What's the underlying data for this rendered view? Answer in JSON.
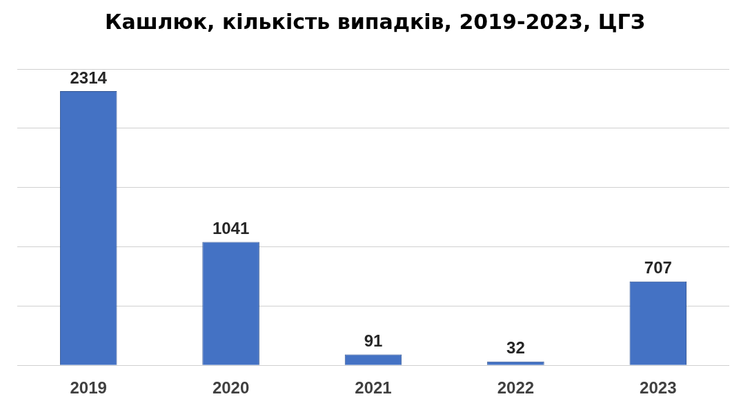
{
  "chart_data": {
    "type": "bar",
    "title": "Кашлюк, кількість випадків, 2019-2023, ЦГЗ",
    "categories": [
      "2019",
      "2020",
      "2021",
      "2022",
      "2023"
    ],
    "values": [
      2314,
      1041,
      91,
      32,
      707
    ],
    "color": "#4472c4",
    "ylim": [
      0,
      2500
    ],
    "yticks": [
      {
        "value": 0,
        "label": null
      },
      {
        "value": 500,
        "label": null
      },
      {
        "value": 1000,
        "label": null
      },
      {
        "value": 1500,
        "label": null
      },
      {
        "value": 2000,
        "label": null
      },
      {
        "value": 2500,
        "label": null
      }
    ],
    "tick_labels": "x",
    "grid": "y",
    "data_labels": true,
    "legend": false
  }
}
